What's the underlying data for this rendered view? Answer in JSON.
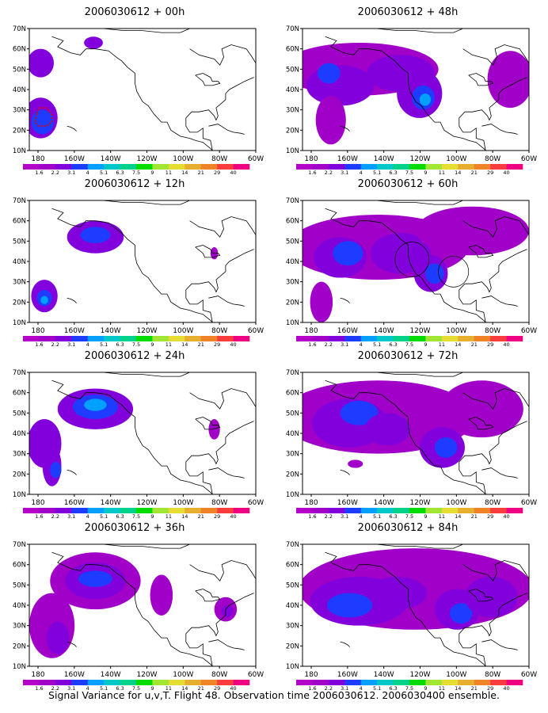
{
  "panels": [
    {
      "title": "2006030612 + 00h"
    },
    {
      "title": "2006030612 + 48h"
    },
    {
      "title": "2006030612 + 12h"
    },
    {
      "title": "2006030612 + 60h"
    },
    {
      "title": "2006030612 + 24h"
    },
    {
      "title": "2006030612 + 72h"
    },
    {
      "title": "2006030612 + 36h"
    },
    {
      "title": "2006030612 + 84h"
    }
  ],
  "axes": {
    "lat_labels": [
      "70N",
      "60N",
      "50N",
      "40N",
      "30N",
      "20N",
      "10N"
    ],
    "lon_labels": [
      "180",
      "160W",
      "140W",
      "120W",
      "100W",
      "80W",
      "60W"
    ]
  },
  "colorbar": {
    "labels": [
      "1.6",
      "2.2",
      "3.1",
      "4",
      "5.1",
      "6.3",
      "7.5",
      "9",
      "11",
      "14",
      "21",
      "29",
      "40"
    ],
    "colors": [
      "#a000c8",
      "#8200dc",
      "#1e3cff",
      "#00a0ff",
      "#00c8c8",
      "#00d28c",
      "#00dc00",
      "#a0e632",
      "#e6dc32",
      "#e6af2d",
      "#f08228",
      "#fa3c3c",
      "#f00082"
    ]
  },
  "caption": "Signal Variance for u,v,T. Flight 48. Observation time 2006030612. 2006030400 ensemble."
}
